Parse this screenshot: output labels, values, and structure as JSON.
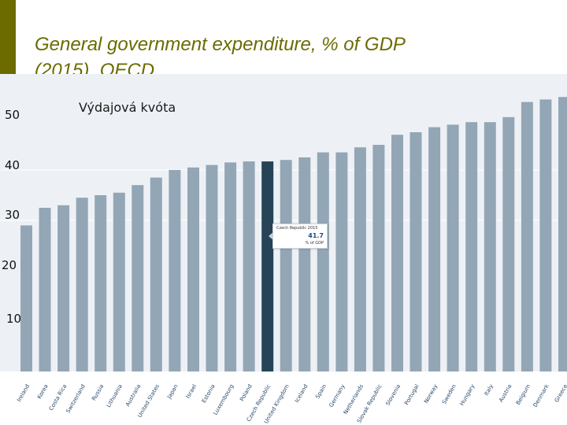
{
  "slide": {
    "title_line1": "General government expenditure, % of GDP",
    "title_line2": "(2015), OECD"
  },
  "colors": {
    "accent": "#6b6b00",
    "bar": "#93a6b5",
    "highlight": "#264357",
    "grid": "#ffffff"
  },
  "chart_data": {
    "type": "bar",
    "title": "General government expenditure, % of GDP (2015), OECD",
    "subtitle": "Výdajová kvóta",
    "ylim": [
      0,
      60
    ],
    "y_ticks": [
      10,
      20,
      30,
      40,
      50
    ],
    "y_tick_labels": [
      "10",
      "20",
      "30",
      "40",
      "50"
    ],
    "gridlines": [
      30,
      40
    ],
    "highlight_index": 13,
    "categories": [
      "Ireland",
      "Korea",
      "Costa Rica",
      "Switzerland",
      "Russia",
      "Lithuania",
      "Australia",
      "United States",
      "Japan",
      "Israel",
      "Estonia",
      "Luxembourg",
      "Poland",
      "Czech Republic",
      "United Kingdom",
      "Iceland",
      "Spain",
      "Germany",
      "Netherlands",
      "Slovak Republic",
      "Slovenia",
      "Portugal",
      "Norway",
      "Sweden",
      "Hungary",
      "Italy",
      "Austria",
      "Belgium",
      "Denmark",
      "Greece"
    ],
    "values": [
      29.0,
      32.5,
      33.0,
      34.5,
      35.0,
      35.5,
      37.0,
      38.5,
      40.0,
      40.5,
      41.0,
      41.5,
      41.7,
      41.7,
      42.0,
      42.5,
      43.5,
      43.5,
      44.5,
      45.0,
      47.0,
      47.5,
      48.5,
      49.0,
      49.5,
      49.5,
      50.5,
      53.5,
      54.0,
      54.5
    ]
  },
  "tooltip": {
    "country": "Czech Republic 2015",
    "value": "41.7",
    "unit": "% of GDP"
  }
}
